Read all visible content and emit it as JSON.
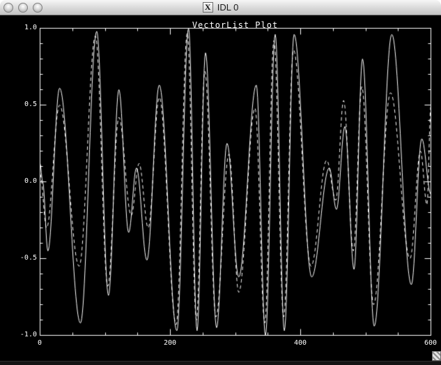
{
  "window": {
    "title": "IDL 0",
    "icon_glyph": "X",
    "buttons": [
      "close",
      "minimize",
      "zoom"
    ]
  },
  "chart_data": {
    "type": "line",
    "title": "VectorList Plot",
    "xlabel": "",
    "ylabel": "",
    "xlim": [
      0,
      600
    ],
    "ylim": [
      -1.0,
      1.0
    ],
    "background": "#000000",
    "axis_color": "#ffffff",
    "grid": false,
    "legend": "none",
    "x_ticks": {
      "major": [
        0,
        200,
        400,
        600
      ],
      "labels": [
        "0",
        "200",
        "400",
        "600"
      ],
      "minor_step": 50
    },
    "y_ticks": {
      "major": [
        1.0,
        0.5,
        0.0,
        -0.5,
        -1.0
      ],
      "labels": [
        "1.0",
        "0.5",
        "0.0",
        "-0.5",
        "-1.0"
      ],
      "minor_step": 0.1
    },
    "series": [
      {
        "name": "vector-data-solid",
        "style": "solid",
        "color": "#ffffff",
        "points_are": "estimated peak/trough (x,y) landmarks read from plot; curve interpolated between them",
        "points": [
          [
            0,
            0.12
          ],
          [
            4,
            0.0
          ],
          [
            12,
            -0.45
          ],
          [
            30,
            0.61
          ],
          [
            62,
            -0.92
          ],
          [
            87,
            0.98
          ],
          [
            105,
            -0.74
          ],
          [
            121,
            0.6
          ],
          [
            136,
            -0.33
          ],
          [
            148,
            0.09
          ],
          [
            164,
            -0.51
          ],
          [
            183,
            0.63
          ],
          [
            210,
            -0.97
          ],
          [
            228,
            1.0
          ],
          [
            241,
            -0.97
          ],
          [
            254,
            0.84
          ],
          [
            271,
            -0.95
          ],
          [
            287,
            0.25
          ],
          [
            305,
            -0.62
          ],
          [
            332,
            0.63
          ],
          [
            346,
            -1.0
          ],
          [
            361,
            0.96
          ],
          [
            375,
            -0.97
          ],
          [
            390,
            0.96
          ],
          [
            417,
            -0.62
          ],
          [
            444,
            0.09
          ],
          [
            455,
            -0.18
          ],
          [
            468,
            0.36
          ],
          [
            482,
            -0.57
          ],
          [
            495,
            0.8
          ],
          [
            513,
            -0.94
          ],
          [
            540,
            0.96
          ],
          [
            570,
            -0.67
          ],
          [
            586,
            0.28
          ],
          [
            600,
            -0.08
          ]
        ]
      },
      {
        "name": "vector-data-dashed",
        "style": "dashed",
        "color": "#ffffff",
        "dash_pattern": [
          5,
          4
        ],
        "points_are": "estimated peak/trough (x,y) landmarks read from plot; curve interpolated between them",
        "points": [
          [
            0,
            0.05
          ],
          [
            10,
            -0.3
          ],
          [
            30,
            0.5
          ],
          [
            60,
            -0.55
          ],
          [
            85,
            0.95
          ],
          [
            104,
            -0.68
          ],
          [
            121,
            0.42
          ],
          [
            140,
            -0.22
          ],
          [
            152,
            0.12
          ],
          [
            166,
            -0.3
          ],
          [
            183,
            0.55
          ],
          [
            209,
            -0.93
          ],
          [
            226,
            0.97
          ],
          [
            240,
            -0.9
          ],
          [
            253,
            0.72
          ],
          [
            270,
            -0.88
          ],
          [
            290,
            0.18
          ],
          [
            305,
            -0.72
          ],
          [
            330,
            0.48
          ],
          [
            345,
            -0.92
          ],
          [
            359,
            0.92
          ],
          [
            374,
            -0.88
          ],
          [
            389,
            0.86
          ],
          [
            416,
            -0.55
          ],
          [
            440,
            0.14
          ],
          [
            454,
            -0.12
          ],
          [
            466,
            0.53
          ],
          [
            481,
            -0.45
          ],
          [
            494,
            0.62
          ],
          [
            512,
            -0.8
          ],
          [
            538,
            0.58
          ],
          [
            568,
            -0.5
          ],
          [
            584,
            0.2
          ],
          [
            594,
            -0.15
          ],
          [
            600,
            0.5
          ]
        ]
      }
    ]
  }
}
